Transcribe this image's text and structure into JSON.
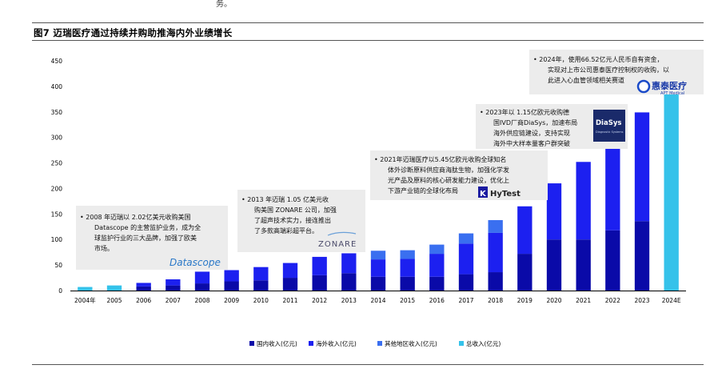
{
  "header": {
    "top_fragment": "务。",
    "figure_title": "图7  迈瑞医疗通过持续并购助推海内外业绩增长"
  },
  "colors": {
    "domestic": "#0a0aa8",
    "overseas": "#1c20f0",
    "other": "#3a6ff0",
    "total": "#35c2ea",
    "annotation_bg": "#ececec"
  },
  "chart_data": {
    "type": "bar",
    "title": "",
    "xlabel": "",
    "ylabel": "",
    "ylim": [
      0,
      450
    ],
    "yticks": [
      0,
      50,
      100,
      150,
      200,
      250,
      300,
      350,
      400,
      450
    ],
    "categories": [
      "2004年",
      "2005",
      "2006",
      "2007",
      "2008",
      "2009",
      "2010",
      "2011",
      "2012",
      "2013",
      "2014",
      "2015",
      "2016",
      "2017",
      "2018",
      "2019",
      "2020",
      "2021",
      "2022",
      "2023",
      "2024E"
    ],
    "series": [
      {
        "name": "国内收入(亿元)",
        "color": "#0a0aa8",
        "values": [
          null,
          null,
          8,
          10,
          14,
          18,
          20,
          25,
          30,
          34,
          27,
          27,
          27,
          32,
          36,
          72,
          100,
          100,
          118,
          136,
          null
        ]
      },
      {
        "name": "海外收入(亿元)",
        "color": "#1c20f0",
        "values": [
          null,
          null,
          7,
          12,
          23,
          22,
          26,
          29,
          36,
          39,
          34,
          35,
          45,
          60,
          77,
          93,
          110,
          152,
          163,
          213,
          null
        ]
      },
      {
        "name": "其他地区收入(亿元)",
        "color": "#3a6ff0",
        "values": [
          null,
          null,
          0,
          0,
          0,
          0,
          0,
          0,
          0,
          0,
          17,
          17,
          18,
          20,
          25,
          0,
          0,
          0,
          0,
          0,
          null
        ]
      },
      {
        "name": "总收入(亿元)",
        "color": "#35c2ea",
        "values": [
          7,
          10,
          null,
          null,
          null,
          null,
          null,
          null,
          null,
          null,
          null,
          null,
          null,
          null,
          null,
          null,
          null,
          null,
          null,
          null,
          405
        ]
      }
    ],
    "legend_position": "bottom-center",
    "grid": false
  },
  "annotations": [
    {
      "lines": [
        "•  2008 年迈瑞以 2.02亿美元收购美国",
        "Datascope 的主营监护业务，成为全",
        "球监护行业的三大品牌，加强了欧美",
        "市场。"
      ],
      "logo": "Datascope"
    },
    {
      "lines": [
        "•  2013 年迈瑞 1.05 亿美元收",
        "购美国 ZONARE 公司，加强",
        "了超声技术实力，接连推出",
        "了多款高端彩超平台。"
      ],
      "logo": "ZONARE"
    },
    {
      "lines": [
        "•  2021年迈瑞医疗以5.45亿欧元收购全球知名",
        "体外诊断原料供应商海肽生物，加强化学发",
        "光产品及原料的核心研发能力建设，优化上",
        "下游产业链的全球化布局"
      ],
      "logo": "HyTest"
    },
    {
      "lines": [
        "•  2023年以 1.15亿欧元收购德",
        "国IVD厂商DiaSys，加速布局",
        "海外供应链建设，支持实现",
        "海外中大样本量客户群突破"
      ],
      "logo": "DiaSys"
    },
    {
      "lines": [
        "•  2024年，使用66.52亿元人民币自有资金，",
        "实现对上市公司惠泰医疗控制权的收购，以",
        "此进入心血管领域相关赛道"
      ],
      "logo": "惠泰医疗",
      "logo_sub": "APT Medical"
    }
  ],
  "logos": {
    "diasys_sub": "Diagnostic Systems",
    "hytest_mark": "K"
  }
}
